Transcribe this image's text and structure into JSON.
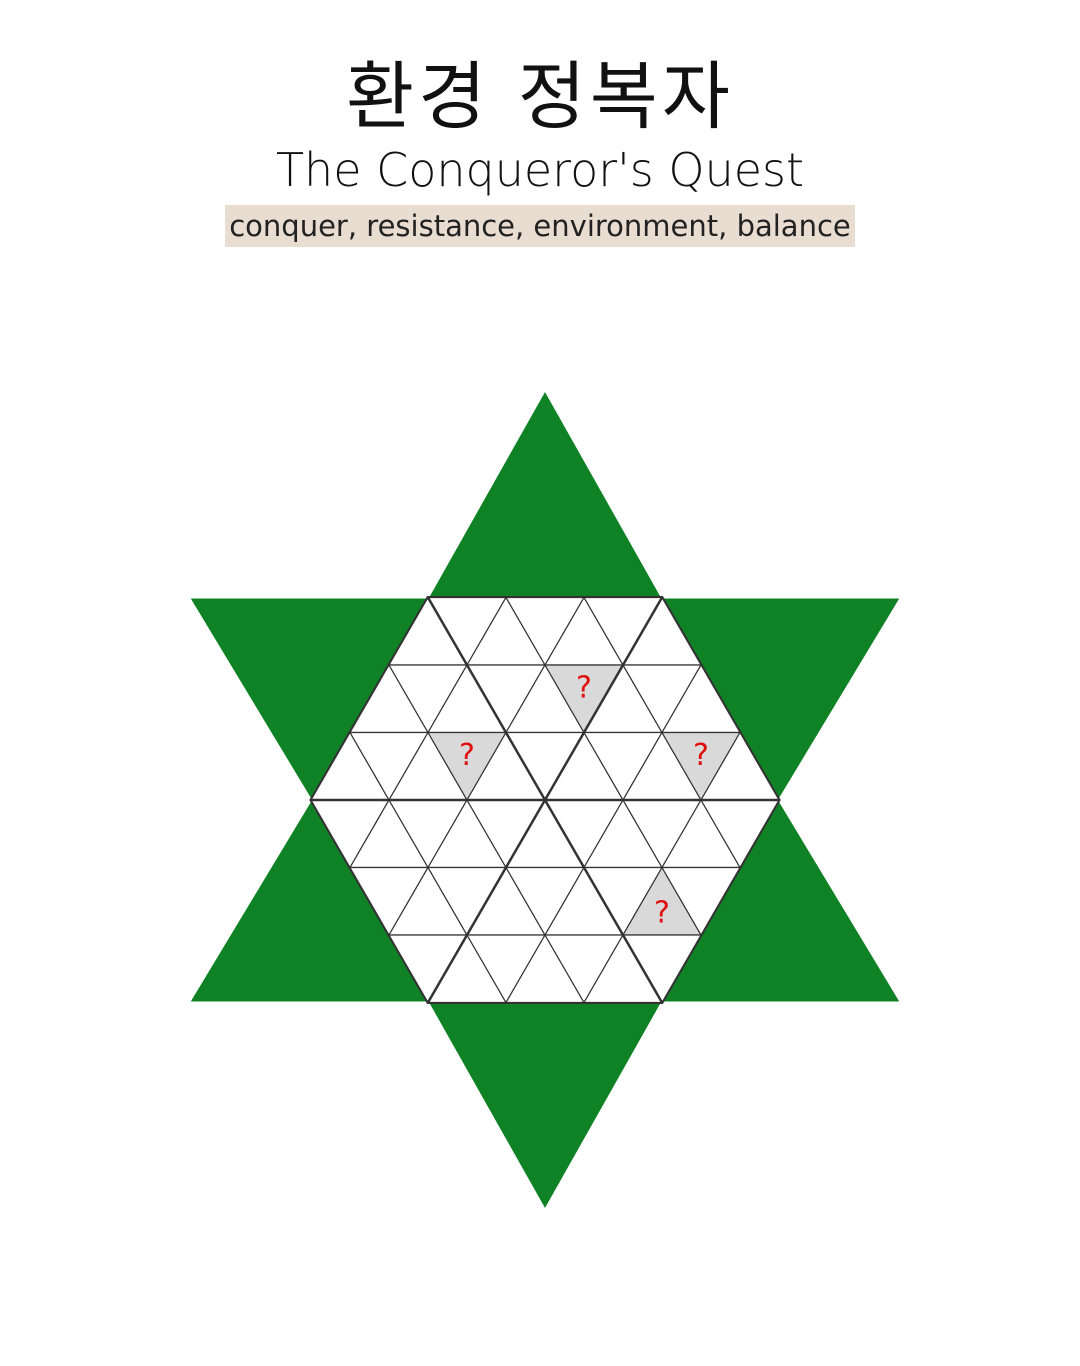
{
  "title_ko": "환경 정복자",
  "title_en": "The Conqueror's Quest",
  "keywords": "conquer, resistance, environment, balance",
  "board": {
    "star_color": "#0e8224",
    "cell_fill": "#ffffff",
    "highlight_fill": "#d9d9d9",
    "hint_mark": "?",
    "hint_color": "#e01010",
    "rows": 6,
    "hidden_cells": [
      {
        "row": 1,
        "index": 5
      },
      {
        "row": 2,
        "index": 3
      },
      {
        "row": 2,
        "index": 9
      },
      {
        "row": 4,
        "index": 7
      }
    ]
  }
}
